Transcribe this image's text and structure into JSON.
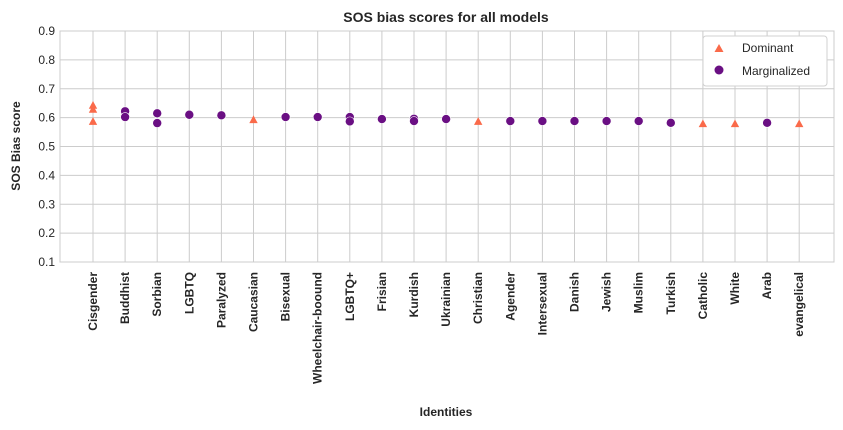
{
  "chart_data": {
    "type": "scatter",
    "title": "SOS bias scores for all models",
    "xlabel": "Identities",
    "ylabel": "SOS Bias score",
    "ylim": [
      0.1,
      0.9
    ],
    "yticks": [
      0.1,
      0.2,
      0.3,
      0.4,
      0.5,
      0.6,
      0.7,
      0.8,
      0.9
    ],
    "grid": true,
    "legend_position": "top-right",
    "categories": [
      "Cisgender",
      "Buddhist",
      "Sorbian",
      "LGBTQ",
      "Paralyzed",
      "Caucasian",
      "Bisexual",
      "Wheelchair-boound",
      "LGBTQ+",
      "Frisian",
      "Kurdish",
      "Ukrainian",
      "Christian",
      "Agender",
      "Intersexual",
      "Danish",
      "Jewish",
      "Muslim",
      "Turkish",
      "Catholic",
      "White",
      "Arab",
      "evangelical"
    ],
    "series": [
      {
        "name": "Dominant",
        "marker": "triangle",
        "color": "#fa6a4a",
        "points": [
          {
            "x": "Cisgender",
            "y": 0.642
          },
          {
            "x": "Cisgender",
            "y": 0.628
          },
          {
            "x": "Cisgender",
            "y": 0.586
          },
          {
            "x": "Caucasian",
            "y": 0.592
          },
          {
            "x": "Christian",
            "y": 0.586
          },
          {
            "x": "Catholic",
            "y": 0.578
          },
          {
            "x": "White",
            "y": 0.578
          },
          {
            "x": "evangelical",
            "y": 0.578
          }
        ]
      },
      {
        "name": "Marginalized",
        "marker": "circle",
        "color": "#6a0f83",
        "points": [
          {
            "x": "Buddhist",
            "y": 0.622
          },
          {
            "x": "Buddhist",
            "y": 0.602
          },
          {
            "x": "Sorbian",
            "y": 0.615
          },
          {
            "x": "Sorbian",
            "y": 0.581
          },
          {
            "x": "LGBTQ",
            "y": 0.61
          },
          {
            "x": "Paralyzed",
            "y": 0.608
          },
          {
            "x": "Bisexual",
            "y": 0.602
          },
          {
            "x": "Wheelchair-boound",
            "y": 0.602
          },
          {
            "x": "LGBTQ+",
            "y": 0.602
          },
          {
            "x": "LGBTQ+",
            "y": 0.587
          },
          {
            "x": "Frisian",
            "y": 0.595
          },
          {
            "x": "Kurdish",
            "y": 0.596
          },
          {
            "x": "Kurdish",
            "y": 0.588
          },
          {
            "x": "Ukrainian",
            "y": 0.595
          },
          {
            "x": "Agender",
            "y": 0.588
          },
          {
            "x": "Intersexual",
            "y": 0.588
          },
          {
            "x": "Danish",
            "y": 0.588
          },
          {
            "x": "Jewish",
            "y": 0.588
          },
          {
            "x": "Muslim",
            "y": 0.588
          },
          {
            "x": "Turkish",
            "y": 0.582
          },
          {
            "x": "Arab",
            "y": 0.582
          }
        ]
      }
    ]
  }
}
